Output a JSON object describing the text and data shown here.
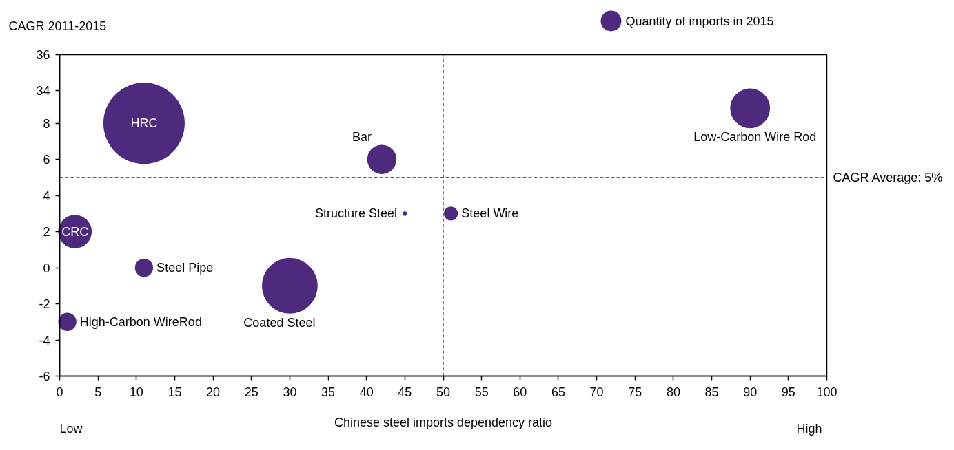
{
  "chart_data": {
    "type": "bubble",
    "ylabel": "CAGR 2011-2015",
    "xlabel": "Chinese steel imports dependency ratio",
    "x": [
      11,
      2,
      11,
      1,
      30,
      42,
      45,
      51
    ],
    "series": [
      {
        "name": "Quantity of imports in 2015",
        "color": "#4e2a7f",
        "values": [
          8,
          2,
          0,
          -3,
          -1,
          6,
          3,
          3
        ],
        "sizes": [
          1,
          0.17,
          0.05,
          0.05,
          0.47,
          0.13,
          0.003,
          0.03
        ]
      },
      {
        "color": "#4e2a7f",
        "axis": "y2",
        "x": [
          90
        ],
        "values": [
          33
        ],
        "sizes": [
          0.24
        ]
      }
    ],
    "xlim": [
      0,
      100
    ],
    "xticks": [
      0,
      5,
      10,
      15,
      20,
      25,
      30,
      35,
      40,
      45,
      50,
      55,
      60,
      65,
      70,
      75,
      80,
      85,
      90,
      95,
      100
    ],
    "ylim": [
      -6,
      11.8
    ],
    "yticks": [
      -6,
      -4,
      -2,
      0,
      2,
      4,
      6,
      8
    ],
    "y2lim": [
      18,
      36
    ],
    "y2ticks": [
      34,
      36
    ],
    "ref_lines": [
      {
        "axis": "y",
        "value": 5,
        "label": "CAGR Average: 5%",
        "line_style": "dashed"
      },
      {
        "axis": "x",
        "value": 50,
        "line_style": "dashed"
      }
    ],
    "annotations": [
      {
        "text": "HRC",
        "x": 11,
        "y": 8
      },
      {
        "text": "CRC",
        "x": 2,
        "y": 2
      },
      {
        "text": "Steel Pipe",
        "x": 11,
        "y": 0
      },
      {
        "text": "High-Carbon WireRod",
        "x": 1,
        "y": -3
      },
      {
        "text": "Coated Steel",
        "x": 30,
        "y": -1
      },
      {
        "text": "Bar",
        "x": 42,
        "y": 6
      },
      {
        "text": "Structure Steel",
        "x": 45,
        "y": 3
      },
      {
        "text": "Steel Wire",
        "x": 51,
        "y": 3
      },
      "Low-Carbon Wire Rod",
      "Low",
      "High"
    ],
    "legend": "top right",
    "grid": false,
    "marker": "circle"
  }
}
